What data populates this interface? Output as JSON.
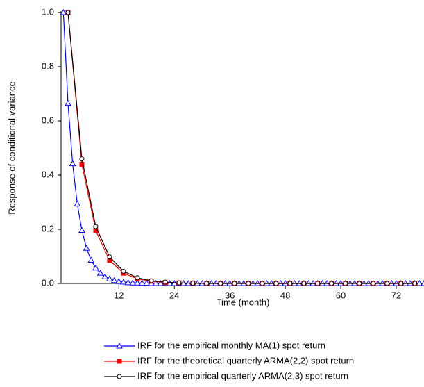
{
  "chart_data": {
    "type": "line",
    "xlabel": "Time (month)",
    "ylabel": "Response of conditional variance",
    "xlim": [
      -0.5,
      78
    ],
    "ylim": [
      0,
      1
    ],
    "xticks": [
      12,
      24,
      36,
      48,
      60,
      72
    ],
    "yticks": [
      {
        "value": 0,
        "label": "0.0"
      },
      0.2,
      0.4,
      0.6,
      0.8,
      {
        "value": 1,
        "label": "1.0"
      }
    ],
    "series": [
      {
        "name": "IRF for the empirical monthly MA(1) spot return",
        "color": "#0000ff",
        "marker": "triangle",
        "x": [
          0,
          1,
          2,
          3,
          4,
          5,
          6,
          7,
          8,
          9,
          10,
          11,
          12,
          13,
          14,
          15,
          16,
          17,
          18,
          19,
          20,
          21,
          22,
          23,
          24,
          25,
          26,
          27,
          28,
          29,
          30,
          31,
          32,
          33,
          34,
          35,
          36,
          37,
          38,
          39,
          40,
          41,
          42,
          43,
          44,
          45,
          46,
          47,
          48,
          49,
          50,
          51,
          52,
          53,
          54,
          55,
          56,
          57,
          58,
          59,
          60,
          61,
          62,
          63,
          64,
          65,
          66,
          67,
          68,
          69,
          70,
          71,
          72,
          73,
          74,
          75,
          76,
          77,
          78
        ],
        "values": [
          1,
          0.665,
          0.442,
          0.294,
          0.196,
          0.13,
          0.086,
          0.057,
          0.038,
          0.025,
          0.017,
          0.011,
          0.007,
          0.005,
          0.003,
          0.002,
          0.002,
          0.001,
          0.001,
          0,
          0,
          0,
          0,
          0,
          0,
          0,
          0,
          0,
          0,
          0,
          0,
          0,
          0,
          0,
          0,
          0,
          0,
          0,
          0,
          0,
          0,
          0,
          0,
          0,
          0,
          0,
          0,
          0,
          0,
          0,
          0,
          0,
          0,
          0,
          0,
          0,
          0,
          0,
          0,
          0,
          0,
          0,
          0,
          0,
          0,
          0,
          0,
          0,
          0,
          0,
          0,
          0,
          0,
          0,
          0,
          0,
          0,
          0,
          0
        ]
      },
      {
        "name": "IRF for the theoretical quarterly ARMA(2,2) spot return",
        "color": "#ff0000",
        "marker": "square",
        "x": [
          1,
          4,
          7,
          10,
          13,
          16,
          19,
          22,
          25,
          28,
          31,
          34,
          37,
          40,
          43,
          46,
          49,
          52,
          55,
          58,
          61,
          64,
          67,
          70,
          73,
          76
        ],
        "values": [
          1,
          0.44,
          0.195,
          0.085,
          0.038,
          0.017,
          0.008,
          0.003,
          0.002,
          0.001,
          0,
          0,
          0,
          0,
          0,
          0,
          0,
          0,
          0,
          0,
          0,
          0,
          0,
          0,
          0,
          0
        ]
      },
      {
        "name": "IRF for the empirical quarterly ARMA(2,3) spot return",
        "color": "#000000",
        "marker": "circle",
        "x": [
          1,
          4,
          7,
          10,
          13,
          16,
          19,
          22,
          25,
          28,
          31,
          34,
          37,
          40,
          43,
          46,
          49,
          52,
          55,
          58,
          61,
          64,
          67,
          70,
          73,
          76
        ],
        "values": [
          1,
          0.46,
          0.21,
          0.098,
          0.045,
          0.021,
          0.01,
          0.005,
          0.002,
          0.001,
          0,
          0,
          0,
          0,
          0,
          0,
          0,
          0,
          0,
          0,
          0,
          0,
          0,
          0,
          0,
          0
        ]
      }
    ]
  }
}
